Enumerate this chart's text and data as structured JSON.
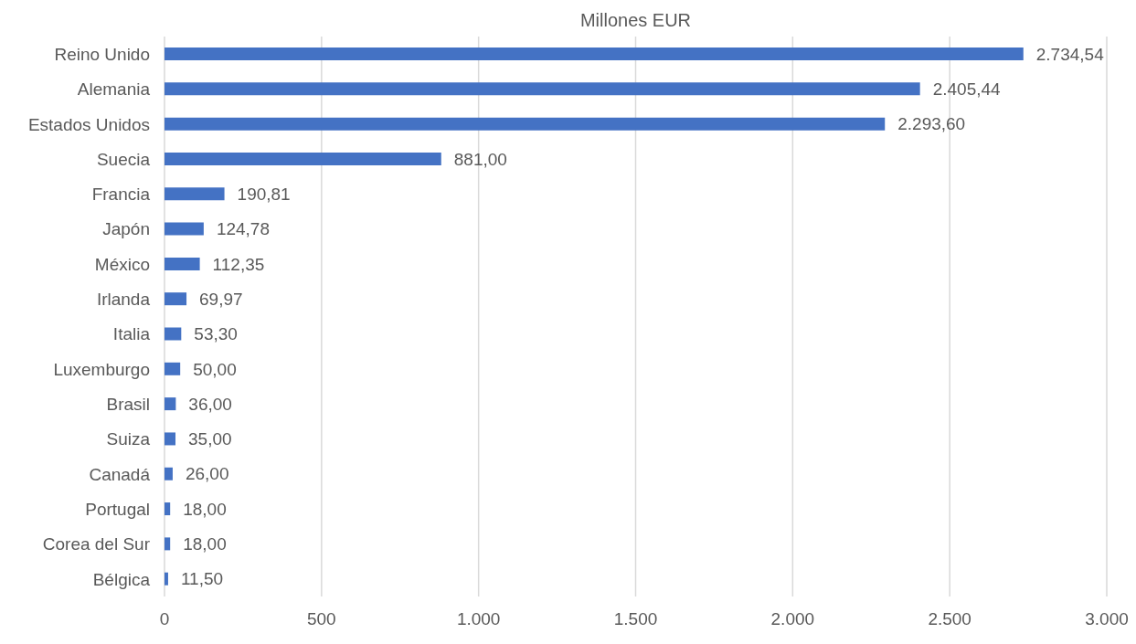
{
  "chart_data": {
    "type": "bar",
    "orientation": "horizontal",
    "title": "Millones EUR",
    "categories": [
      "Reino Unido",
      "Alemania",
      "Estados Unidos",
      "Suecia",
      "Francia",
      "Japón",
      "México",
      "Irlanda",
      "Italia",
      "Luxemburgo",
      "Brasil",
      "Suiza",
      "Canadá",
      "Portugal",
      "Corea del Sur",
      "Bélgica"
    ],
    "values": [
      2734.54,
      2405.44,
      2293.6,
      881,
      190.81,
      124.78,
      112.35,
      69.97,
      53.3,
      50,
      36,
      35,
      26,
      18,
      18,
      11.5
    ],
    "value_labels": [
      "2.734,54",
      "2.405,44",
      "2.293,60",
      "881,00",
      "190,81",
      "124,78",
      "112,35",
      "69,97",
      "53,30",
      "50,00",
      "36,00",
      "35,00",
      "26,00",
      "18,00",
      "18,00",
      "11,50"
    ],
    "color": "#4472c4",
    "xlim": [
      0,
      3000
    ],
    "xticks": [
      0,
      500,
      {
        "value": 1000,
        "label": "1.000"
      },
      {
        "value": 1500,
        "label": "1.500"
      },
      {
        "value": 2000,
        "label": "2.000"
      },
      {
        "value": 2500,
        "label": "2.500"
      },
      {
        "value": 3000,
        "label": "3.000"
      }
    ],
    "grid": "x",
    "legend": false
  }
}
